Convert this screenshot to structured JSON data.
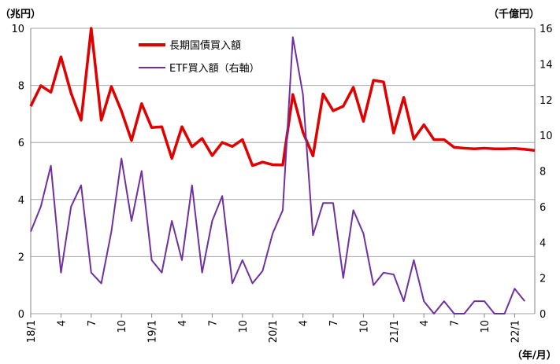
{
  "chart_data": {
    "type": "line",
    "left_unit": "（兆円）",
    "right_unit": "（千億円）",
    "x_unit": "（年/月）",
    "ylim_left": [
      0,
      10
    ],
    "ylim_right": [
      0,
      16
    ],
    "yticks_left": [
      "0",
      "2",
      "4",
      "6",
      "8",
      "10"
    ],
    "yticks_right": [
      "0",
      "2",
      "4",
      "6",
      "8",
      "10",
      "12",
      "14",
      "16"
    ],
    "x_labels": [
      "18/1",
      "4",
      "7",
      "10",
      "19/1",
      "4",
      "7",
      "10",
      "20/1",
      "4",
      "7",
      "10",
      "21/1",
      "4",
      "7",
      "10",
      "22/1"
    ],
    "grid": true,
    "legend_position": "top-center",
    "series": [
      {
        "name": "長期国債買入額",
        "axis": "left",
        "color": "#e00000",
        "values": [
          7.27,
          7.99,
          7.76,
          9.0,
          7.73,
          6.78,
          10.0,
          6.78,
          7.96,
          7.1,
          6.07,
          7.36,
          6.52,
          6.55,
          5.44,
          6.55,
          5.85,
          6.14,
          5.54,
          6.0,
          5.86,
          6.1,
          5.19,
          5.31,
          5.22,
          5.21,
          7.68,
          6.36,
          5.53,
          7.7,
          7.11,
          7.27,
          7.93,
          6.74,
          8.18,
          8.12,
          6.33,
          7.58,
          6.12,
          6.62,
          6.1,
          6.1,
          5.83,
          5.8,
          5.78,
          5.8,
          5.78,
          5.78,
          5.79,
          5.76,
          5.72
        ]
      },
      {
        "name": "ETF買入額（右軸）",
        "axis": "right",
        "color": "#7030a0",
        "values": [
          4.6,
          6.0,
          8.3,
          2.3,
          6.0,
          7.2,
          2.3,
          1.7,
          4.6,
          8.7,
          5.2,
          8.0,
          3.0,
          2.3,
          5.2,
          3.0,
          7.2,
          2.3,
          5.2,
          6.6,
          1.7,
          3.0,
          1.7,
          2.4,
          4.5,
          5.8,
          15.5,
          12.3,
          4.4,
          6.2,
          6.2,
          2.0,
          5.8,
          4.5,
          1.6,
          2.3,
          2.2,
          0.7,
          3.0,
          0.7,
          0.0,
          0.7,
          0.0,
          0.0,
          0.7,
          0.7,
          0.0,
          0.0,
          1.4,
          0.7
        ]
      }
    ]
  }
}
